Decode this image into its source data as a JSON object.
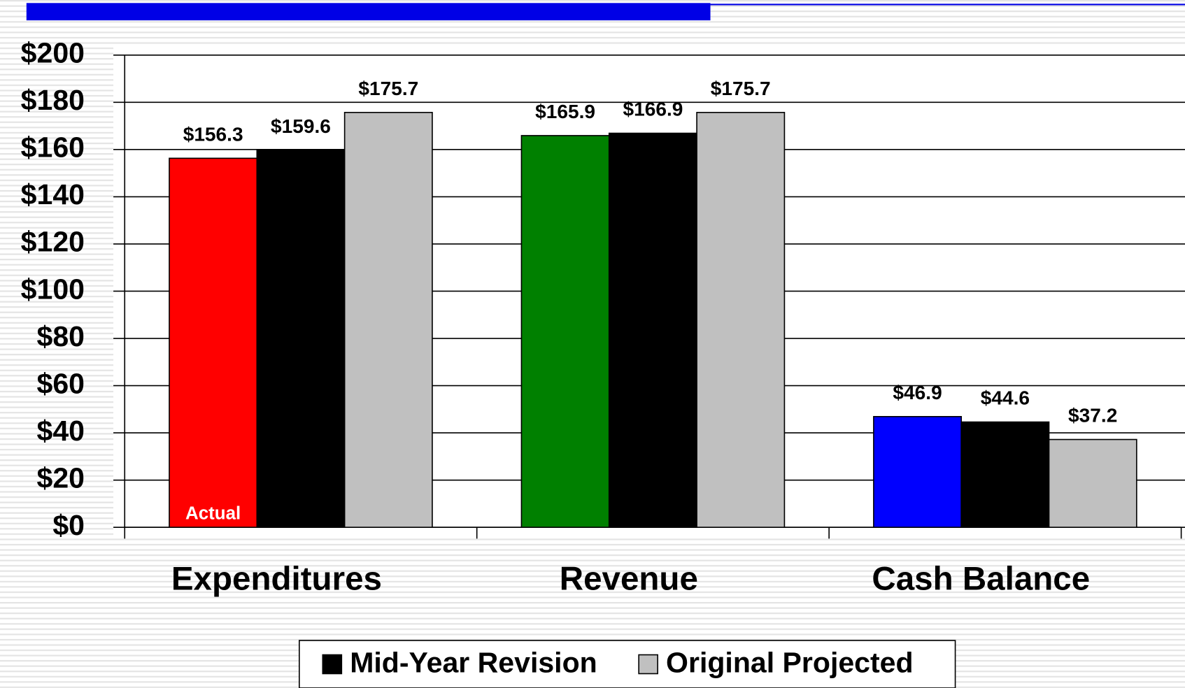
{
  "chart_data": {
    "type": "bar",
    "categories": [
      "Expenditures",
      "Revenue",
      "Cash Balance"
    ],
    "series": [
      {
        "name": "Actual",
        "colors": [
          "#ff0000",
          "#008000",
          "#0000ff"
        ],
        "in_legend": false,
        "values": [
          156.3,
          165.9,
          46.9
        ],
        "value_labels": [
          "$156.3",
          "$165.9",
          "$46.9"
        ]
      },
      {
        "name": "Mid-Year Revision",
        "color": "#000000",
        "in_legend": true,
        "values": [
          159.6,
          166.9,
          44.6
        ],
        "value_labels": [
          "$159.6",
          "$166.9",
          "$44.6"
        ]
      },
      {
        "name": "Original Projected",
        "color": "#c0c0c0",
        "in_legend": true,
        "values": [
          175.7,
          175.7,
          37.2
        ],
        "value_labels": [
          "$175.7",
          "$175.7",
          "$37.2"
        ]
      }
    ],
    "ylim": [
      0,
      200
    ],
    "yticks": [
      {
        "value": 0,
        "label": "$0"
      },
      {
        "value": 20,
        "label": "$20"
      },
      {
        "value": 40,
        "label": "$40"
      },
      {
        "value": 60,
        "label": "$60"
      },
      {
        "value": 80,
        "label": "$80"
      },
      {
        "value": 100,
        "label": "$100"
      },
      {
        "value": 120,
        "label": "$120"
      },
      {
        "value": 140,
        "label": "$140"
      },
      {
        "value": 160,
        "label": "$160"
      },
      {
        "value": 180,
        "label": "$180"
      },
      {
        "value": 200,
        "label": "$200"
      }
    ],
    "grid": true,
    "legend": "bottom"
  }
}
